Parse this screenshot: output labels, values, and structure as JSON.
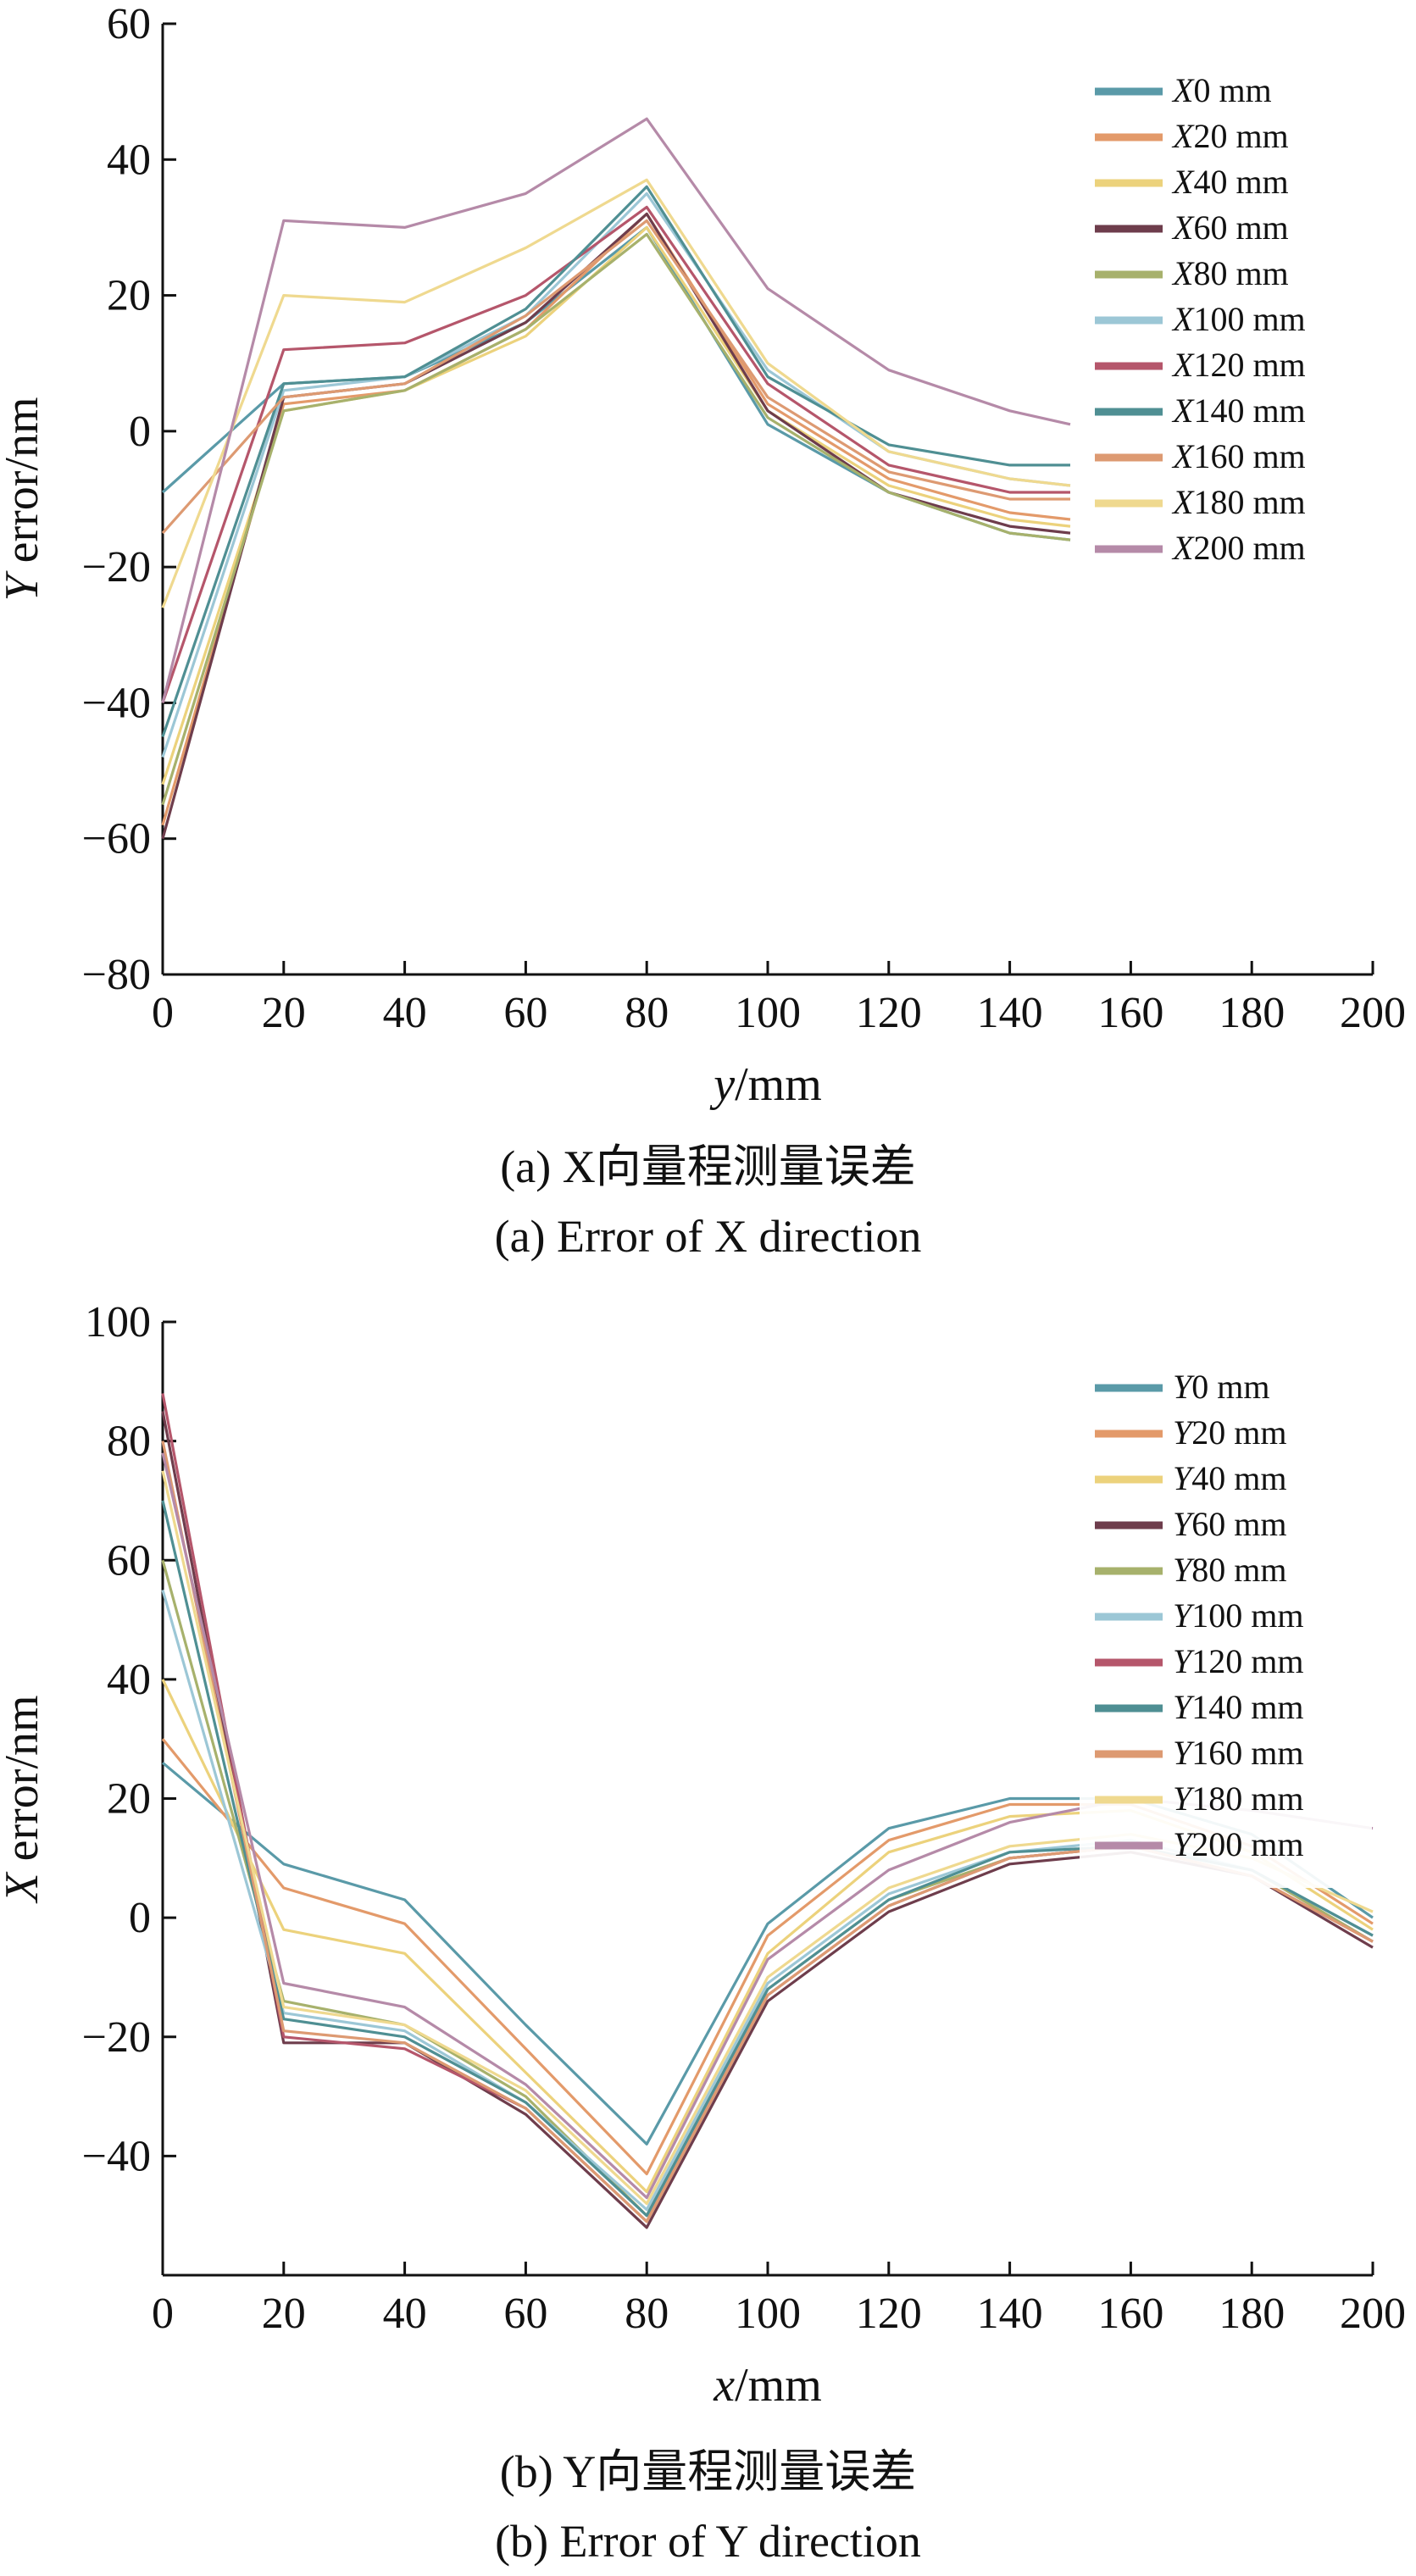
{
  "chart_data": [
    {
      "type": "line",
      "xlabel": "y/mm",
      "ylabel": "Y error/nm",
      "xlim": [
        0,
        200
      ],
      "ylim": [
        -80,
        60
      ],
      "xticks": [
        0,
        20,
        40,
        60,
        80,
        100,
        120,
        140,
        160,
        180,
        200
      ],
      "yticks": [
        -80,
        -60,
        -40,
        -20,
        0,
        20,
        40,
        60
      ],
      "grid": false,
      "legend_position": "top-right",
      "caption_cn": "(a) X向量程测量误差",
      "caption_en": "(a) Error of X direction",
      "series": [
        {
          "name": "X0 mm",
          "color": "#5a9aa8",
          "x": [
            0,
            20,
            40,
            60,
            80,
            100,
            120,
            140,
            150
          ],
          "values": [
            -9,
            7,
            8,
            16,
            30,
            1,
            -9,
            -15,
            -16
          ]
        },
        {
          "name": "X20 mm",
          "color": "#e39a6a",
          "x": [
            0,
            20,
            40,
            60,
            80,
            100,
            120,
            140,
            150
          ],
          "values": [
            -58,
            4,
            6,
            15,
            32,
            4,
            -7,
            -12,
            -13
          ]
        },
        {
          "name": "X40 mm",
          "color": "#ecd27c",
          "x": [
            0,
            20,
            40,
            60,
            80,
            100,
            120,
            140,
            150
          ],
          "values": [
            -52,
            3,
            6,
            14,
            30,
            3,
            -8,
            -13,
            -14
          ]
        },
        {
          "name": "X60 mm",
          "color": "#6e3d4c",
          "x": [
            0,
            20,
            40,
            60,
            80,
            100,
            120,
            140,
            150
          ],
          "values": [
            -60,
            5,
            7,
            16,
            32,
            3,
            -9,
            -14,
            -15
          ]
        },
        {
          "name": "X80 mm",
          "color": "#a7b16c",
          "x": [
            0,
            20,
            40,
            60,
            80,
            100,
            120,
            140,
            150
          ],
          "values": [
            -55,
            3,
            6,
            15,
            29,
            2,
            -9,
            -15,
            -16
          ]
        },
        {
          "name": "X100 mm",
          "color": "#9cc7d6",
          "x": [
            0,
            20,
            40,
            60,
            80,
            100,
            120,
            140,
            150
          ],
          "values": [
            -48,
            6,
            8,
            17,
            35,
            9,
            -3,
            -7,
            -8
          ]
        },
        {
          "name": "X120 mm",
          "color": "#b5566b",
          "x": [
            0,
            20,
            40,
            60,
            80,
            100,
            120,
            140,
            150
          ],
          "values": [
            -40,
            12,
            13,
            20,
            33,
            7,
            -5,
            -9,
            -9
          ]
        },
        {
          "name": "X140 mm",
          "color": "#4f8f93",
          "x": [
            0,
            20,
            40,
            60,
            80,
            100,
            120,
            140,
            150
          ],
          "values": [
            -45,
            7,
            8,
            18,
            36,
            8,
            -2,
            -5,
            -5
          ]
        },
        {
          "name": "X160 mm",
          "color": "#dd9a72",
          "x": [
            0,
            20,
            40,
            60,
            80,
            100,
            120,
            140,
            150
          ],
          "values": [
            -15,
            5,
            7,
            17,
            31,
            5,
            -6,
            -10,
            -10
          ]
        },
        {
          "name": "X180 mm",
          "color": "#efd98f",
          "x": [
            0,
            20,
            40,
            60,
            80,
            100,
            120,
            140,
            150
          ],
          "values": [
            -26,
            20,
            19,
            27,
            37,
            10,
            -3,
            -7,
            -8
          ]
        },
        {
          "name": "X200 mm",
          "color": "#b58aa8",
          "x": [
            0,
            20,
            40,
            60,
            80,
            100,
            120,
            140,
            150
          ],
          "values": [
            -40,
            31,
            30,
            35,
            46,
            21,
            9,
            3,
            1
          ]
        }
      ]
    },
    {
      "type": "line",
      "xlabel": "x/mm",
      "ylabel": "X error/nm",
      "xlim": [
        0,
        200
      ],
      "ylim": [
        -60,
        100
      ],
      "xticks": [
        0,
        20,
        40,
        60,
        80,
        100,
        120,
        140,
        160,
        180,
        200
      ],
      "yticks": [
        -40,
        -20,
        0,
        20,
        40,
        60,
        80,
        100
      ],
      "grid": false,
      "legend_position": "top-right",
      "caption_cn": "(b) Y向量程测量误差",
      "caption_en": "(b) Error of Y direction",
      "series": [
        {
          "name": "Y0 mm",
          "color": "#5a9aa8",
          "x": [
            0,
            20,
            40,
            60,
            80,
            100,
            120,
            140,
            160,
            180,
            200
          ],
          "values": [
            26,
            9,
            3,
            -18,
            -38,
            -1,
            15,
            20,
            20,
            14,
            0
          ]
        },
        {
          "name": "Y20 mm",
          "color": "#e39a6a",
          "x": [
            0,
            20,
            40,
            60,
            80,
            100,
            120,
            140,
            160,
            180,
            200
          ],
          "values": [
            30,
            5,
            -1,
            -22,
            -43,
            -3,
            13,
            19,
            19,
            12,
            -1
          ]
        },
        {
          "name": "Y40 mm",
          "color": "#ecd27c",
          "x": [
            0,
            20,
            40,
            60,
            80,
            100,
            120,
            140,
            160,
            180,
            200
          ],
          "values": [
            40,
            -2,
            -6,
            -26,
            -46,
            -6,
            11,
            17,
            18,
            11,
            -2
          ]
        },
        {
          "name": "Y60 mm",
          "color": "#6e3d4c",
          "x": [
            0,
            20,
            40,
            60,
            80,
            100,
            120,
            140,
            160,
            180,
            200
          ],
          "values": [
            85,
            -21,
            -21,
            -33,
            -52,
            -14,
            1,
            9,
            11,
            7,
            -5
          ]
        },
        {
          "name": "Y80 mm",
          "color": "#a7b16c",
          "x": [
            0,
            20,
            40,
            60,
            80,
            100,
            120,
            140,
            160,
            180,
            200
          ],
          "values": [
            60,
            -14,
            -18,
            -30,
            -50,
            -12,
            3,
            10,
            12,
            8,
            -4
          ]
        },
        {
          "name": "Y100 mm",
          "color": "#9cc7d6",
          "x": [
            0,
            20,
            40,
            60,
            80,
            100,
            120,
            140,
            160,
            180,
            200
          ],
          "values": [
            55,
            -16,
            -19,
            -31,
            -49,
            -11,
            4,
            11,
            13,
            8,
            -3
          ]
        },
        {
          "name": "Y120 mm",
          "color": "#b5566b",
          "x": [
            0,
            20,
            40,
            60,
            80,
            100,
            120,
            140,
            160,
            180,
            200
          ],
          "values": [
            88,
            -20,
            -22,
            -32,
            -51,
            -13,
            2,
            10,
            12,
            7,
            -4
          ]
        },
        {
          "name": "Y140 mm",
          "color": "#4f8f93",
          "x": [
            0,
            20,
            40,
            60,
            80,
            100,
            120,
            140,
            160,
            180,
            200
          ],
          "values": [
            70,
            -17,
            -20,
            -31,
            -50,
            -12,
            3,
            11,
            12,
            8,
            -3
          ]
        },
        {
          "name": "Y160 mm",
          "color": "#dd9a72",
          "x": [
            0,
            20,
            40,
            60,
            80,
            100,
            120,
            140,
            160,
            180,
            200
          ],
          "values": [
            80,
            -19,
            -21,
            -32,
            -51,
            -13,
            2,
            10,
            12,
            7,
            -4
          ]
        },
        {
          "name": "Y180 mm",
          "color": "#efd98f",
          "x": [
            0,
            20,
            40,
            60,
            80,
            100,
            120,
            140,
            160,
            180,
            200
          ],
          "values": [
            75,
            -15,
            -18,
            -29,
            -48,
            -10,
            5,
            12,
            14,
            10,
            1
          ]
        },
        {
          "name": "Y200 mm",
          "color": "#b58aa8",
          "x": [
            0,
            20,
            40,
            60,
            80,
            100,
            120,
            140,
            160,
            180,
            200
          ],
          "values": [
            78,
            -11,
            -15,
            -28,
            -47,
            -7,
            8,
            16,
            20,
            18,
            15
          ]
        }
      ]
    }
  ]
}
